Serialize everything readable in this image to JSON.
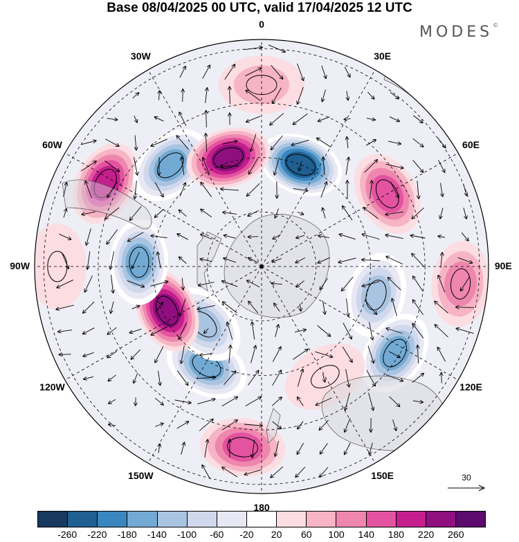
{
  "title": "Base 08/04/2025 00 UTC, valid 17/04/2025 12 UTC",
  "logo": "MODES",
  "logo_mark": "©",
  "longitude_labels": [
    {
      "text": "0",
      "deg": 0
    },
    {
      "text": "30E",
      "deg": 30
    },
    {
      "text": "60E",
      "deg": 60
    },
    {
      "text": "90E",
      "deg": 90
    },
    {
      "text": "120E",
      "deg": 120
    },
    {
      "text": "150E",
      "deg": 150
    },
    {
      "text": "180",
      "deg": 180
    },
    {
      "text": "150W",
      "deg": 210
    },
    {
      "text": "120W",
      "deg": 240
    },
    {
      "text": "90W",
      "deg": 270
    },
    {
      "text": "60W",
      "deg": 300
    },
    {
      "text": "30W",
      "deg": 330
    }
  ],
  "reference_vector": {
    "label": "30"
  },
  "colorbar": {
    "colors": [
      "#173a5e",
      "#1f5f91",
      "#3a86bf",
      "#73aad3",
      "#a9c4e0",
      "#cfd8ec",
      "#e8e8f4",
      "#ffffff",
      "#fbdde2",
      "#f6b4c4",
      "#ef86ae",
      "#e353a0",
      "#c41f8c",
      "#8f0f7e",
      "#5c0a6e"
    ],
    "tick_labels": [
      "-260",
      "-220",
      "-180",
      "-140",
      "-100",
      "-60",
      "-20",
      "20",
      "60",
      "100",
      "140",
      "180",
      "220",
      "260"
    ]
  },
  "anomalies": [
    {
      "lon": 0,
      "lat_from_pole": 40,
      "value": 60
    },
    {
      "lon": 21,
      "lat_from_pole": 24,
      "value": -260
    },
    {
      "lon": 60,
      "lat_from_pole": 32,
      "value": 140
    },
    {
      "lon": 104,
      "lat_from_pole": 26,
      "value": -140
    },
    {
      "lon": 123,
      "lat_from_pole": 35,
      "value": -180
    },
    {
      "lon": 150,
      "lat_from_pole": 28,
      "value": 40
    },
    {
      "lon": 186,
      "lat_from_pole": 40,
      "value": 140
    },
    {
      "lon": 209,
      "lat_from_pole": 25,
      "value": -180
    },
    {
      "lon": 225,
      "lat_from_pole": 18,
      "value": -140
    },
    {
      "lon": 245,
      "lat_from_pole": 23,
      "value": 220
    },
    {
      "lon": 272,
      "lat_from_pole": 27,
      "value": -180
    },
    {
      "lon": 298,
      "lat_from_pole": 39,
      "value": 180
    },
    {
      "lon": 318,
      "lat_from_pole": 30,
      "value": -180
    },
    {
      "lon": 343,
      "lat_from_pole": 25,
      "value": 240
    },
    {
      "lon": 95,
      "lat_from_pole": 44,
      "value": 100
    },
    {
      "lon": 270,
      "lat_from_pole": 45,
      "value": 40
    }
  ]
}
